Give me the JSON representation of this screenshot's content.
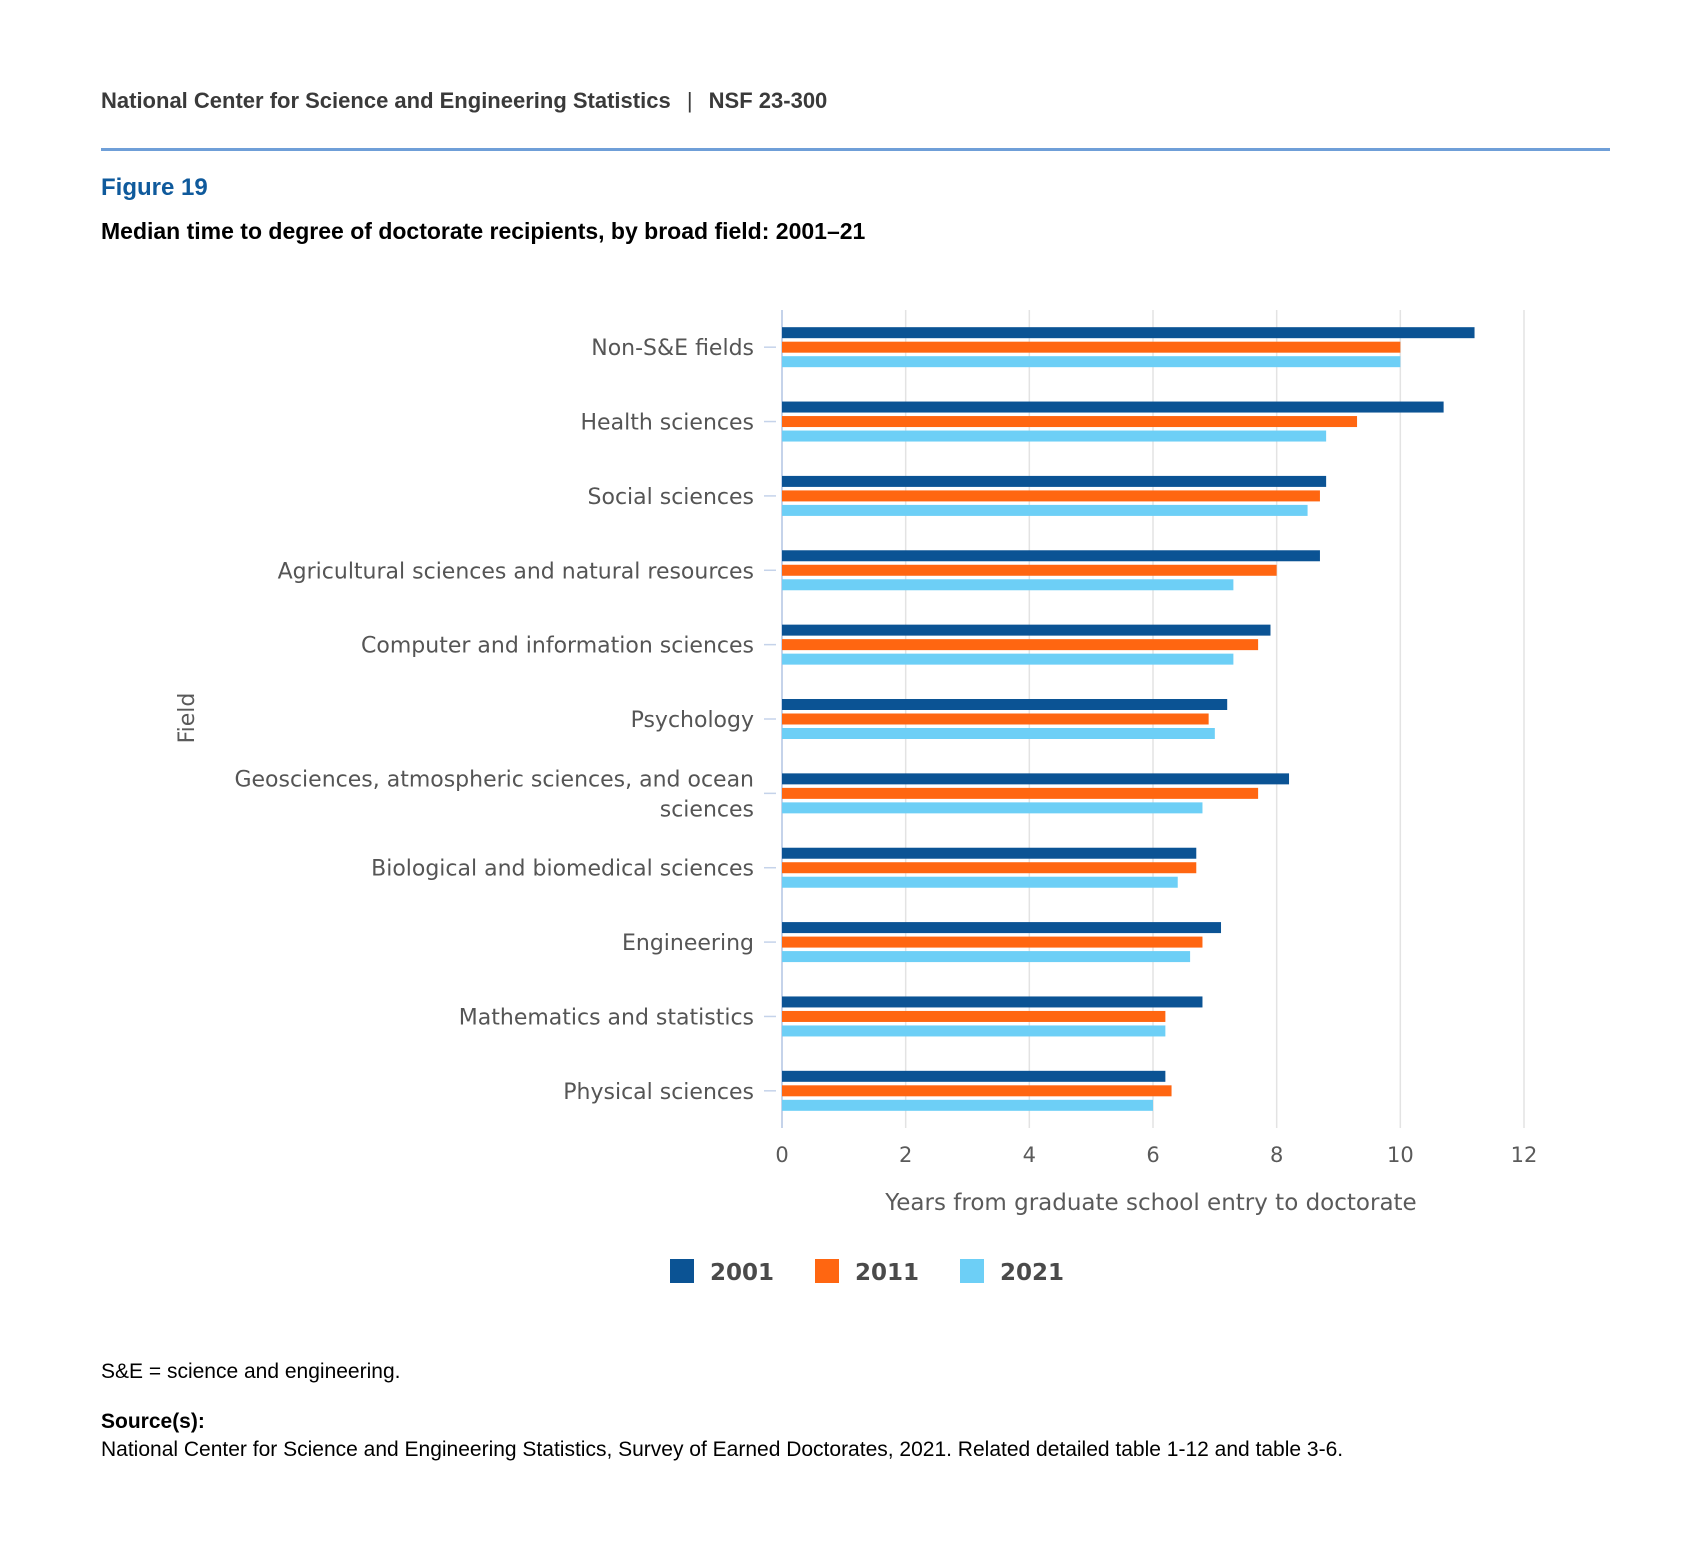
{
  "header": {
    "org": "National Center for Science and Engineering Statistics",
    "separator": "|",
    "report_id": "NSF 23-300"
  },
  "figure": {
    "label": "Figure 19",
    "title": "Median time to degree of doctorate recipients, by broad field: 2001–21"
  },
  "chart_data": {
    "type": "bar",
    "orientation": "horizontal",
    "xlabel": "Years from graduate school entry to doctorate",
    "ylabel": "Field",
    "xlim": [
      0,
      12
    ],
    "xticks": [
      0,
      2,
      4,
      6,
      8,
      10,
      12
    ],
    "grid": true,
    "legend_position": "bottom",
    "categories": [
      [
        "Non-S&E fields"
      ],
      [
        "Health sciences"
      ],
      [
        "Social sciences"
      ],
      [
        "Agricultural sciences and natural resources"
      ],
      [
        "Computer and information sciences"
      ],
      [
        "Psychology"
      ],
      [
        "Geosciences, atmospheric sciences, and ocean",
        "sciences"
      ],
      [
        "Biological and biomedical sciences"
      ],
      [
        "Engineering"
      ],
      [
        "Mathematics and statistics"
      ],
      [
        "Physical sciences"
      ]
    ],
    "series": [
      {
        "name": "2001",
        "color": "#0b5394",
        "values": [
          11.2,
          10.7,
          8.8,
          8.7,
          7.9,
          7.2,
          8.2,
          6.7,
          7.1,
          6.8,
          6.2
        ]
      },
      {
        "name": "2011",
        "color": "#ff6611",
        "values": [
          10.0,
          9.3,
          8.7,
          8.0,
          7.7,
          6.9,
          7.7,
          6.7,
          6.8,
          6.2,
          6.3
        ]
      },
      {
        "name": "2021",
        "color": "#6dcff6",
        "values": [
          10.0,
          8.8,
          8.5,
          7.3,
          7.3,
          7.0,
          6.8,
          6.4,
          6.6,
          6.2,
          6.0
        ]
      }
    ]
  },
  "footnotes": {
    "abbreviation": "S&E = science and engineering.",
    "source_label": "Source(s):",
    "source_text": "National Center for Science and Engineering Statistics, Survey of Earned Doctorates, 2021. Related detailed table 1-12 and table 3-6."
  }
}
